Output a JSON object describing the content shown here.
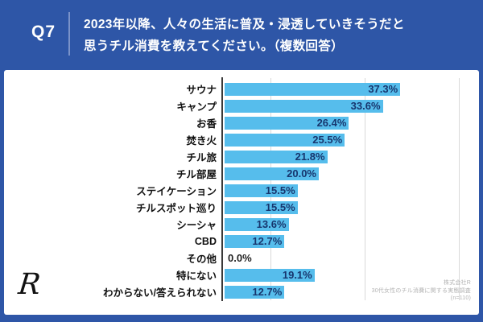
{
  "header": {
    "q_label": "Q7",
    "question_line1": "2023年以降、人々の生活に普及・浸透していきそうだと",
    "question_line2": "思うチル消費を教えてください。（複数回答）"
  },
  "chart_data": {
    "type": "bar",
    "orientation": "horizontal",
    "title": "2023年以降、人々の生活に普及・浸透していきそうだと思うチル消費を教えてください。（複数回答）",
    "categories": [
      "サウナ",
      "キャンプ",
      "お香",
      "焚き火",
      "チル旅",
      "チル部屋",
      "ステイケーション",
      "チルスポット巡り",
      "シーシャ",
      "CBD",
      "その他",
      "特にない",
      "わからない/答えられない"
    ],
    "values": [
      37.3,
      33.6,
      26.4,
      25.5,
      21.8,
      20.0,
      15.5,
      15.5,
      13.6,
      12.7,
      0.0,
      19.1,
      12.7
    ],
    "value_labels": [
      "37.3%",
      "33.6%",
      "26.4%",
      "25.5%",
      "21.8%",
      "20.0%",
      "15.5%",
      "15.5%",
      "13.6%",
      "12.7%",
      "0.0%",
      "19.1%",
      "12.7%"
    ],
    "xlim": [
      0,
      54
    ],
    "gridline_percents": [
      10,
      30,
      50
    ],
    "grid": true,
    "legend": false,
    "bar_color": "#56BDEC",
    "value_label_color": "#17366E"
  },
  "footer": {
    "logo_text": "R",
    "source_line1": "株式会社R",
    "source_line2": "30代女性のチル消費に関する実態調査",
    "source_line3": "(n=110)"
  },
  "colors": {
    "frame_blue": "#2E56A7",
    "panel_bg": "#FFFFFF",
    "axis_color": "#3a3a3a",
    "gridline_color": "#d9d9d9"
  }
}
